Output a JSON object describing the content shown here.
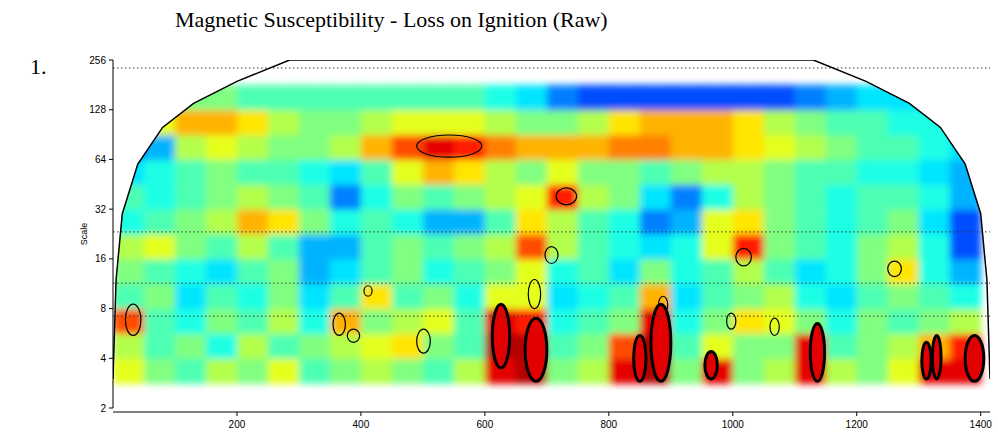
{
  "chart_data": {
    "type": "heatmap",
    "panel_label": "1.",
    "title": "Magnetic Susceptibility - Loss on Ignition (Raw)",
    "ylabel": "Scale",
    "log": "y",
    "xlim": [
      0,
      1415
    ],
    "xticks": [
      200,
      400,
      600,
      800,
      1000,
      1200,
      1400
    ],
    "ylim": [
      2,
      256
    ],
    "yticks": [
      2,
      4,
      8,
      16,
      32,
      64,
      128,
      256
    ],
    "x": [
      25,
      75,
      125,
      175,
      225,
      275,
      325,
      375,
      425,
      475,
      525,
      575,
      625,
      675,
      725,
      775,
      825,
      875,
      925,
      975,
      1025,
      1075,
      1125,
      1175,
      1225,
      1275,
      1325,
      1375
    ],
    "scales": [
      3.36,
      4.76,
      6.73,
      9.51,
      13.45,
      19.03,
      26.9,
      38.05,
      53.8,
      76.1,
      107.6,
      152.2
    ],
    "zlim": [
      0,
      1
    ],
    "z": [
      [
        0.6,
        0.5,
        0.45,
        0.55,
        0.5,
        0.6,
        0.45,
        0.5,
        0.55,
        0.5,
        0.45,
        0.55,
        0.9,
        0.95,
        0.5,
        0.55,
        0.9,
        0.95,
        0.5,
        0.9,
        0.5,
        0.55,
        0.9,
        0.55,
        0.5,
        0.6,
        0.9,
        0.9
      ],
      [
        0.55,
        0.45,
        0.5,
        0.4,
        0.55,
        0.45,
        0.5,
        0.55,
        0.6,
        0.65,
        0.5,
        0.45,
        0.95,
        0.95,
        0.45,
        0.5,
        0.8,
        0.95,
        0.45,
        0.6,
        0.5,
        0.5,
        0.9,
        0.45,
        0.5,
        0.55,
        0.7,
        0.85
      ],
      [
        0.8,
        0.45,
        0.4,
        0.5,
        0.45,
        0.55,
        0.4,
        0.7,
        0.5,
        0.55,
        0.6,
        0.45,
        0.9,
        0.85,
        0.4,
        0.45,
        0.5,
        0.9,
        0.4,
        0.5,
        0.65,
        0.6,
        0.5,
        0.4,
        0.5,
        0.45,
        0.5,
        0.55
      ],
      [
        0.45,
        0.5,
        0.35,
        0.45,
        0.4,
        0.5,
        0.35,
        0.45,
        0.65,
        0.45,
        0.5,
        0.4,
        0.6,
        0.6,
        0.35,
        0.4,
        0.45,
        0.7,
        0.35,
        0.45,
        0.5,
        0.55,
        0.4,
        0.35,
        0.45,
        0.5,
        0.45,
        0.4
      ],
      [
        0.5,
        0.45,
        0.4,
        0.35,
        0.45,
        0.5,
        0.3,
        0.35,
        0.45,
        0.5,
        0.4,
        0.45,
        0.5,
        0.6,
        0.4,
        0.45,
        0.35,
        0.5,
        0.4,
        0.45,
        0.55,
        0.45,
        0.35,
        0.4,
        0.5,
        0.65,
        0.4,
        0.3
      ],
      [
        0.55,
        0.6,
        0.5,
        0.45,
        0.55,
        0.45,
        0.3,
        0.3,
        0.45,
        0.5,
        0.45,
        0.5,
        0.55,
        0.8,
        0.55,
        0.45,
        0.4,
        0.35,
        0.4,
        0.6,
        0.85,
        0.5,
        0.45,
        0.4,
        0.5,
        0.55,
        0.4,
        0.2
      ],
      [
        0.4,
        0.45,
        0.5,
        0.55,
        0.7,
        0.65,
        0.5,
        0.4,
        0.45,
        0.4,
        0.3,
        0.3,
        0.45,
        0.65,
        0.55,
        0.45,
        0.4,
        0.25,
        0.3,
        0.6,
        0.65,
        0.5,
        0.45,
        0.4,
        0.45,
        0.5,
        0.35,
        0.2
      ],
      [
        0.45,
        0.4,
        0.45,
        0.5,
        0.55,
        0.5,
        0.45,
        0.25,
        0.4,
        0.5,
        0.45,
        0.5,
        0.55,
        0.6,
        0.85,
        0.55,
        0.5,
        0.35,
        0.25,
        0.4,
        0.55,
        0.5,
        0.45,
        0.4,
        0.45,
        0.45,
        0.4,
        0.3
      ],
      [
        0.35,
        0.4,
        0.45,
        0.5,
        0.45,
        0.45,
        0.4,
        0.35,
        0.45,
        0.6,
        0.7,
        0.65,
        0.55,
        0.5,
        0.6,
        0.5,
        0.5,
        0.45,
        0.5,
        0.55,
        0.55,
        0.5,
        0.45,
        0.45,
        0.4,
        0.4,
        0.35,
        0.3
      ],
      [
        0.25,
        0.3,
        0.55,
        0.6,
        0.55,
        0.5,
        0.5,
        0.55,
        0.7,
        0.8,
        0.9,
        0.85,
        0.75,
        0.7,
        0.7,
        0.7,
        0.75,
        0.75,
        0.7,
        0.7,
        0.65,
        0.6,
        0.55,
        0.5,
        0.45,
        0.45,
        0.4,
        0.35
      ],
      [
        0.5,
        0.6,
        0.7,
        0.7,
        0.65,
        0.55,
        0.5,
        0.5,
        0.55,
        0.6,
        0.6,
        0.6,
        0.55,
        0.5,
        0.5,
        0.55,
        0.65,
        0.7,
        0.7,
        0.7,
        0.65,
        0.55,
        0.5,
        0.45,
        0.45,
        0.4,
        0.4,
        0.4
      ],
      [
        0.45,
        0.45,
        0.5,
        0.5,
        0.45,
        0.45,
        0.45,
        0.45,
        0.45,
        0.45,
        0.45,
        0.45,
        0.4,
        0.35,
        0.25,
        0.2,
        0.2,
        0.2,
        0.2,
        0.2,
        0.2,
        0.2,
        0.25,
        0.3,
        0.35,
        0.35,
        0.35,
        0.35
      ]
    ],
    "coi": {
      "x": [
        0,
        5,
        15,
        40,
        80,
        130,
        200,
        285,
        1130,
        1215,
        1285,
        1335,
        1375,
        1400,
        1410,
        1415
      ],
      "scale": [
        3,
        12,
        30,
        60,
        100,
        140,
        190,
        256,
        256,
        190,
        140,
        100,
        60,
        30,
        12,
        3
      ]
    },
    "reference_lines": [
      229,
      23.3,
      11.4,
      7.2
    ],
    "contours": [
      {
        "x": [
          490,
          595
        ],
        "scale": [
          66,
          90
        ],
        "line_style": "thin"
      },
      {
        "x": [
          715,
          748
        ],
        "scale": [
          34,
          43
        ],
        "line_style": "thin"
      },
      {
        "x": [
          697,
          718
        ],
        "scale": [
          15,
          19
        ],
        "line_style": "thin"
      },
      {
        "x": [
          1005,
          1030
        ],
        "scale": [
          14.5,
          18.5
        ],
        "line_style": "thin"
      },
      {
        "x": [
          1250,
          1272
        ],
        "scale": [
          12.5,
          15.5
        ],
        "line_style": "thin"
      },
      {
        "x": [
          405,
          418
        ],
        "scale": [
          9.5,
          11
        ],
        "line_style": "thin"
      },
      {
        "x": [
          20,
          45
        ],
        "scale": [
          5.5,
          8.5
        ],
        "line_style": "thin"
      },
      {
        "x": [
          355,
          375
        ],
        "scale": [
          5.5,
          7.5
        ],
        "line_style": "thin"
      },
      {
        "x": [
          378,
          398
        ],
        "scale": [
          5,
          6
        ],
        "line_style": "thin"
      },
      {
        "x": [
          490,
          512
        ],
        "scale": [
          4.3,
          6
        ],
        "line_style": "thin"
      },
      {
        "x": [
          1060,
          1075
        ],
        "scale": [
          5.5,
          7
        ],
        "line_style": "thin"
      },
      {
        "x": [
          990,
          1005
        ],
        "scale": [
          6,
          7.5
        ],
        "line_style": "thin"
      },
      {
        "x": [
          670,
          690
        ],
        "scale": [
          8,
          12
        ],
        "line_style": "thin"
      },
      {
        "x": [
          880,
          895
        ],
        "scale": [
          7.5,
          9.5
        ],
        "line_style": "thin"
      },
      {
        "x": [
          612,
          640
        ],
        "scale": [
          3.5,
          8.5
        ],
        "line_style": "thick"
      },
      {
        "x": [
          665,
          700
        ],
        "scale": [
          2.9,
          7
        ],
        "line_style": "thick"
      },
      {
        "x": [
          840,
          860
        ],
        "scale": [
          2.9,
          5.5
        ],
        "line_style": "thick"
      },
      {
        "x": [
          868,
          900
        ],
        "scale": [
          2.9,
          8.5
        ],
        "line_style": "thick"
      },
      {
        "x": [
          955,
          975
        ],
        "scale": [
          3,
          4.4
        ],
        "line_style": "thick"
      },
      {
        "x": [
          1125,
          1148
        ],
        "scale": [
          2.9,
          6.5
        ],
        "line_style": "thick"
      },
      {
        "x": [
          1305,
          1320
        ],
        "scale": [
          3,
          5
        ],
        "line_style": "thick"
      },
      {
        "x": [
          1322,
          1336
        ],
        "scale": [
          3,
          5.5
        ],
        "line_style": "thick"
      },
      {
        "x": [
          1375,
          1405
        ],
        "scale": [
          2.9,
          5.5
        ],
        "line_style": "thick"
      }
    ]
  }
}
